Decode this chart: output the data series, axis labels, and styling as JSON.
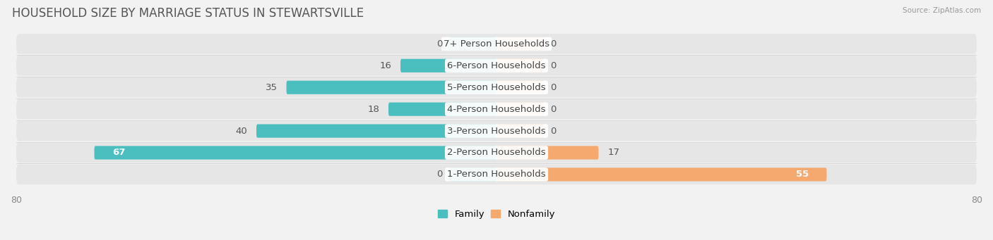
{
  "title": "HOUSEHOLD SIZE BY MARRIAGE STATUS IN STEWARTSVILLE",
  "source": "Source: ZipAtlas.com",
  "categories": [
    "7+ Person Households",
    "6-Person Households",
    "5-Person Households",
    "4-Person Households",
    "3-Person Households",
    "2-Person Households",
    "1-Person Households"
  ],
  "family_values": [
    0,
    16,
    35,
    18,
    40,
    67,
    0
  ],
  "nonfamily_values": [
    0,
    0,
    0,
    0,
    0,
    17,
    55
  ],
  "family_color": "#4BBFBF",
  "nonfamily_color": "#F5A96E",
  "xlim": 80,
  "bar_height": 0.62,
  "stub_size": 8,
  "title_fontsize": 12,
  "label_fontsize": 9.5,
  "value_fontsize": 9.5,
  "axis_fontsize": 9,
  "legend_fontsize": 9.5
}
